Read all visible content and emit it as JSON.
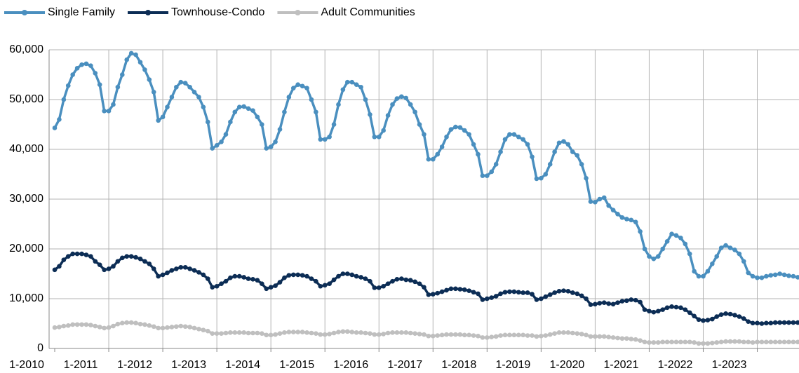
{
  "chart_data": {
    "type": "line",
    "categories": [
      "1-2010",
      null,
      null,
      null,
      null,
      null,
      null,
      null,
      null,
      null,
      null,
      null,
      "1-2011",
      null,
      null,
      null,
      null,
      null,
      null,
      null,
      null,
      null,
      null,
      null,
      "1-2012",
      null,
      null,
      null,
      null,
      null,
      null,
      null,
      null,
      null,
      null,
      null,
      "1-2013",
      null,
      null,
      null,
      null,
      null,
      null,
      null,
      null,
      null,
      null,
      null,
      "1-2014",
      null,
      null,
      null,
      null,
      null,
      null,
      null,
      null,
      null,
      null,
      null,
      "1-2015",
      null,
      null,
      null,
      null,
      null,
      null,
      null,
      null,
      null,
      null,
      null,
      "1-2016",
      null,
      null,
      null,
      null,
      null,
      null,
      null,
      null,
      null,
      null,
      null,
      "1-2017",
      null,
      null,
      null,
      null,
      null,
      null,
      null,
      null,
      null,
      null,
      null,
      "1-2018",
      null,
      null,
      null,
      null,
      null,
      null,
      null,
      null,
      null,
      null,
      null,
      "1-2019",
      null,
      null,
      null,
      null,
      null,
      null,
      null,
      null,
      null,
      null,
      null,
      "1-2020",
      null,
      null,
      null,
      null,
      null,
      null,
      null,
      null,
      null,
      null,
      null,
      "1-2021",
      null,
      null,
      null,
      null,
      null,
      null,
      null,
      null,
      null,
      null,
      null,
      "1-2022",
      null,
      null,
      null,
      null,
      null,
      null,
      null,
      null,
      null,
      null,
      null,
      "1-2023",
      null,
      null,
      null,
      null,
      null,
      null,
      null,
      null,
      null
    ],
    "series": [
      {
        "name": "Single Family",
        "color": "#4a8fbf",
        "values": [
          44300,
          46000,
          50000,
          52800,
          55000,
          56300,
          57000,
          57200,
          56800,
          55300,
          53000,
          47700,
          47700,
          49000,
          52500,
          55000,
          58000,
          59300,
          59000,
          57500,
          56000,
          54000,
          51500,
          45800,
          46500,
          48500,
          50500,
          52500,
          53500,
          53300,
          52500,
          51500,
          50500,
          48500,
          45500,
          40200,
          40800,
          41500,
          43000,
          45500,
          47500,
          48500,
          48600,
          48200,
          47800,
          46500,
          45000,
          40200,
          40500,
          41500,
          44000,
          47500,
          50500,
          52300,
          53000,
          52700,
          52300,
          50000,
          47500,
          42000,
          42000,
          42500,
          45000,
          49000,
          52000,
          53500,
          53500,
          53000,
          52500,
          50000,
          47000,
          42500,
          42500,
          43800,
          46800,
          49000,
          50200,
          50600,
          50300,
          49000,
          47500,
          45000,
          43000,
          38000,
          38000,
          39000,
          40500,
          42500,
          44000,
          44500,
          44400,
          43800,
          43000,
          41000,
          39000,
          34700,
          34700,
          35500,
          37000,
          39500,
          42000,
          43000,
          43000,
          42500,
          42000,
          41000,
          38500,
          34100,
          34200,
          35000,
          37000,
          39500,
          41300,
          41600,
          41000,
          39500,
          38800,
          37000,
          34200,
          29500,
          29400,
          30000,
          30300,
          28700,
          27800,
          27000,
          26300,
          26000,
          25800,
          25400,
          23500,
          20000,
          18500,
          18000,
          18500,
          20000,
          21500,
          23000,
          22700,
          22200,
          21000,
          19000,
          15500,
          14500,
          14500,
          15500,
          17000,
          18500,
          20200,
          20700,
          20200,
          19800,
          19000,
          17500,
          15200,
          14500,
          14200,
          14200,
          14500,
          14700,
          14800,
          15000,
          14800,
          14600,
          14500,
          14300
        ]
      },
      {
        "name": "Townhouse-Condo",
        "color": "#0c2d55",
        "values": [
          15800,
          16500,
          17800,
          18500,
          19000,
          19000,
          19000,
          18800,
          18500,
          17500,
          16800,
          15800,
          16000,
          16500,
          17500,
          18200,
          18500,
          18500,
          18300,
          18000,
          17500,
          17000,
          16000,
          14500,
          14800,
          15200,
          15700,
          16000,
          16300,
          16300,
          16000,
          15700,
          15300,
          14800,
          14000,
          12300,
          12500,
          13000,
          13500,
          14200,
          14500,
          14500,
          14300,
          14000,
          13900,
          13700,
          13000,
          12000,
          12300,
          12600,
          13300,
          14200,
          14700,
          14800,
          14800,
          14700,
          14500,
          14000,
          13500,
          12500,
          12700,
          13000,
          13800,
          14500,
          15000,
          15000,
          14800,
          14500,
          14300,
          14000,
          13500,
          12200,
          12200,
          12500,
          13000,
          13500,
          13900,
          14000,
          13800,
          13700,
          13400,
          13000,
          12300,
          10800,
          10900,
          11100,
          11400,
          11700,
          12000,
          12000,
          11900,
          11800,
          11600,
          11300,
          11000,
          9800,
          10000,
          10200,
          10500,
          11000,
          11300,
          11400,
          11400,
          11300,
          11200,
          11200,
          10900,
          9800,
          10000,
          10400,
          10800,
          11200,
          11500,
          11600,
          11500,
          11200,
          11000,
          10600,
          10000,
          8800,
          8900,
          9100,
          9200,
          9000,
          8900,
          9200,
          9500,
          9600,
          9800,
          9700,
          9300,
          7800,
          7500,
          7300,
          7500,
          7800,
          8200,
          8400,
          8300,
          8200,
          7800,
          7200,
          6500,
          5800,
          5600,
          5700,
          5900,
          6400,
          6800,
          7000,
          6900,
          6700,
          6400,
          6000,
          5400,
          5100,
          5100,
          5000,
          5100,
          5100,
          5200,
          5200,
          5200,
          5200,
          5200,
          5200
        ]
      },
      {
        "name": "Adult Communities",
        "color": "#bfbfbf",
        "values": [
          4200,
          4300,
          4500,
          4600,
          4800,
          4800,
          4800,
          4800,
          4700,
          4500,
          4300,
          4100,
          4200,
          4500,
          4900,
          5100,
          5200,
          5200,
          5100,
          4900,
          4800,
          4600,
          4400,
          4100,
          4100,
          4200,
          4300,
          4400,
          4500,
          4400,
          4300,
          4100,
          3900,
          3700,
          3500,
          3000,
          3000,
          3000,
          3100,
          3200,
          3200,
          3200,
          3200,
          3100,
          3100,
          3100,
          3000,
          2700,
          2700,
          2800,
          3000,
          3200,
          3300,
          3300,
          3300,
          3300,
          3200,
          3100,
          3000,
          2800,
          2800,
          2900,
          3100,
          3300,
          3400,
          3400,
          3300,
          3200,
          3200,
          3100,
          3000,
          2800,
          2800,
          2900,
          3100,
          3200,
          3200,
          3200,
          3200,
          3100,
          3000,
          2900,
          2800,
          2500,
          2500,
          2600,
          2700,
          2800,
          2800,
          2800,
          2800,
          2700,
          2700,
          2600,
          2500,
          2200,
          2200,
          2300,
          2400,
          2600,
          2700,
          2700,
          2700,
          2700,
          2700,
          2600,
          2600,
          2400,
          2500,
          2600,
          2800,
          3000,
          3200,
          3200,
          3200,
          3100,
          3000,
          2900,
          2700,
          2400,
          2400,
          2400,
          2400,
          2300,
          2200,
          2100,
          2000,
          2000,
          1900,
          1800,
          1600,
          1300,
          1200,
          1200,
          1200,
          1300,
          1300,
          1300,
          1300,
          1300,
          1300,
          1300,
          1200,
          1000,
          1000,
          1000,
          1100,
          1200,
          1300,
          1400,
          1400,
          1400,
          1400,
          1300,
          1300,
          1200,
          1300,
          1300,
          1300,
          1300,
          1300,
          1300,
          1300,
          1300,
          1300,
          1300
        ]
      }
    ],
    "ylim": [
      0,
      60000
    ],
    "yticks": [
      0,
      {
        "value": 10000,
        "label": "10,000"
      },
      {
        "value": 20000,
        "label": "20,000"
      },
      {
        "value": 30000,
        "label": "30,000"
      },
      {
        "value": 40000,
        "label": "40,000"
      },
      {
        "value": 50000,
        "label": "50,000"
      },
      {
        "value": 60000,
        "label": "60,000"
      }
    ],
    "grid": true,
    "legend": "top"
  }
}
